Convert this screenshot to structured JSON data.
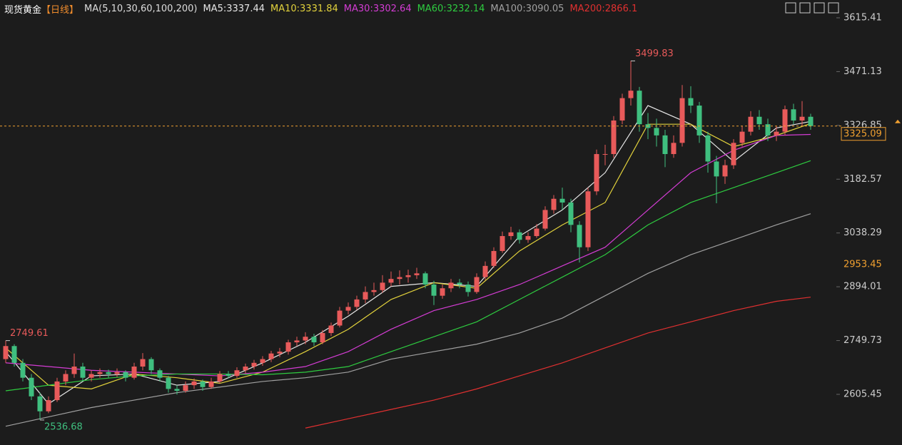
{
  "chart_data": {
    "type": "candlestick",
    "title": "现货黄金",
    "period": "【日线】",
    "indicator": "MA(5,10,30,60,100,200)",
    "up_color": "#e85a5a",
    "down_color": "#3fbf7f",
    "candles": [
      [
        2700,
        2749.61,
        2690,
        2735
      ],
      [
        2735,
        2740,
        2680,
        2690
      ],
      [
        2690,
        2700,
        2640,
        2650
      ],
      [
        2650,
        2660,
        2590,
        2600
      ],
      [
        2600,
        2610,
        2536.68,
        2560
      ],
      [
        2560,
        2600,
        2555,
        2590
      ],
      [
        2590,
        2650,
        2585,
        2640
      ],
      [
        2640,
        2670,
        2630,
        2660
      ],
      [
        2660,
        2715,
        2650,
        2680
      ],
      [
        2680,
        2690,
        2640,
        2650
      ],
      [
        2650,
        2670,
        2640,
        2660
      ],
      [
        2660,
        2675,
        2650,
        2665
      ],
      [
        2665,
        2672,
        2650,
        2660
      ],
      [
        2660,
        2675,
        2652,
        2665
      ],
      [
        2665,
        2670,
        2640,
        2650
      ],
      [
        2650,
        2690,
        2645,
        2680
      ],
      [
        2680,
        2716,
        2670,
        2700
      ],
      [
        2700,
        2705,
        2660,
        2670
      ],
      [
        2670,
        2675,
        2640,
        2650
      ],
      [
        2650,
        2655,
        2610,
        2620
      ],
      [
        2620,
        2630,
        2605,
        2615
      ],
      [
        2615,
        2640,
        2610,
        2630
      ],
      [
        2630,
        2648,
        2620,
        2640
      ],
      [
        2640,
        2645,
        2615,
        2625
      ],
      [
        2625,
        2650,
        2620,
        2640
      ],
      [
        2640,
        2668,
        2635,
        2660
      ],
      [
        2660,
        2668,
        2648,
        2655
      ],
      [
        2655,
        2678,
        2650,
        2670
      ],
      [
        2670,
        2688,
        2662,
        2680
      ],
      [
        2680,
        2698,
        2672,
        2690
      ],
      [
        2690,
        2708,
        2682,
        2700
      ],
      [
        2700,
        2722,
        2692,
        2715
      ],
      [
        2715,
        2730,
        2705,
        2720
      ],
      [
        2720,
        2752,
        2712,
        2745
      ],
      [
        2745,
        2760,
        2735,
        2750
      ],
      [
        2750,
        2772,
        2740,
        2760
      ],
      [
        2760,
        2768,
        2735,
        2745
      ],
      [
        2745,
        2778,
        2740,
        2770
      ],
      [
        2770,
        2798,
        2762,
        2790
      ],
      [
        2790,
        2840,
        2785,
        2830
      ],
      [
        2830,
        2852,
        2820,
        2840
      ],
      [
        2840,
        2870,
        2832,
        2860
      ],
      [
        2860,
        2895,
        2850,
        2880
      ],
      [
        2880,
        2905,
        2870,
        2885
      ],
      [
        2885,
        2925,
        2878,
        2905
      ],
      [
        2905,
        2935,
        2895,
        2915
      ],
      [
        2915,
        2938,
        2900,
        2920
      ],
      [
        2920,
        2940,
        2905,
        2925
      ],
      [
        2925,
        2945,
        2915,
        2930
      ],
      [
        2930,
        2935,
        2890,
        2900
      ],
      [
        2900,
        2910,
        2845,
        2870
      ],
      [
        2870,
        2900,
        2862,
        2890
      ],
      [
        2890,
        2915,
        2880,
        2905
      ],
      [
        2905,
        2915,
        2890,
        2900
      ],
      [
        2900,
        2908,
        2868,
        2880
      ],
      [
        2880,
        2930,
        2875,
        2920
      ],
      [
        2920,
        2962,
        2912,
        2950
      ],
      [
        2950,
        3000,
        2945,
        2990
      ],
      [
        2990,
        3042,
        2985,
        3030
      ],
      [
        3030,
        3055,
        3020,
        3040
      ],
      [
        3040,
        3048,
        3010,
        3020
      ],
      [
        3020,
        3040,
        3012,
        3030
      ],
      [
        3030,
        3062,
        3025,
        3050
      ],
      [
        3050,
        3110,
        3045,
        3100
      ],
      [
        3100,
        3140,
        3090,
        3130
      ],
      [
        3130,
        3160,
        3100,
        3120
      ],
      [
        3120,
        3130,
        3040,
        3060
      ],
      [
        3060,
        3070,
        2959,
        3000
      ],
      [
        3000,
        3160,
        2990,
        3150
      ],
      [
        3150,
        3262,
        3140,
        3250
      ],
      [
        3250,
        3275,
        3220,
        3250
      ],
      [
        3250,
        3352,
        3240,
        3340
      ],
      [
        3340,
        3412,
        3330,
        3400
      ],
      [
        3400,
        3499.83,
        3380,
        3420
      ],
      [
        3420,
        3430,
        3310,
        3330
      ],
      [
        3330,
        3360,
        3290,
        3320
      ],
      [
        3320,
        3345,
        3270,
        3300
      ],
      [
        3300,
        3315,
        3215,
        3250
      ],
      [
        3250,
        3300,
        3240,
        3280
      ],
      [
        3280,
        3435,
        3270,
        3400
      ],
      [
        3400,
        3432,
        3360,
        3380
      ],
      [
        3380,
        3390,
        3280,
        3300
      ],
      [
        3300,
        3310,
        3200,
        3230
      ],
      [
        3230,
        3245,
        3118,
        3190
      ],
      [
        3190,
        3235,
        3170,
        3220
      ],
      [
        3220,
        3290,
        3210,
        3280
      ],
      [
        3280,
        3325,
        3270,
        3310
      ],
      [
        3310,
        3365,
        3300,
        3350
      ],
      [
        3350,
        3368,
        3315,
        3330
      ],
      [
        3330,
        3345,
        3285,
        3300
      ],
      [
        3300,
        3325,
        3285,
        3310
      ],
      [
        3310,
        3380,
        3300,
        3370
      ],
      [
        3370,
        3385,
        3330,
        3340
      ],
      [
        3340,
        3392,
        3325,
        3350
      ],
      [
        3350,
        3358,
        3315,
        3325.09
      ]
    ],
    "ma_x": [
      0,
      5,
      10,
      15,
      20,
      25,
      30,
      35,
      40,
      45,
      50,
      55,
      60,
      65,
      70,
      75,
      80,
      85,
      90,
      94
    ],
    "series": [
      {
        "name": "MA5",
        "label": "MA5:3337.44",
        "color": "#e6e6e6",
        "values": [
          2720,
          2580,
          2655,
          2660,
          2630,
          2640,
          2690,
          2745,
          2815,
          2895,
          2905,
          2895,
          3030,
          3100,
          3200,
          3380,
          3330,
          3230,
          3320,
          3337.44
        ]
      },
      {
        "name": "MA10",
        "label": "MA10:3331.84",
        "color": "#e2d23c",
        "values": [
          2730,
          2630,
          2620,
          2660,
          2650,
          2635,
          2665,
          2720,
          2780,
          2860,
          2905,
          2890,
          2990,
          3060,
          3120,
          3330,
          3330,
          3270,
          3300,
          3331.84
        ]
      },
      {
        "name": "MA30",
        "label": "MA30:3302.64",
        "color": "#d43cd4",
        "values": [
          2690,
          2680,
          2670,
          2665,
          2660,
          2655,
          2665,
          2680,
          2720,
          2780,
          2830,
          2860,
          2900,
          2950,
          3000,
          3100,
          3200,
          3260,
          3300,
          3302.64
        ]
      },
      {
        "name": "MA60",
        "label": "MA60:3232.14",
        "color": "#2ecc40",
        "values": [
          2615,
          2630,
          2645,
          2655,
          2660,
          2660,
          2658,
          2665,
          2680,
          2720,
          2760,
          2800,
          2860,
          2920,
          2980,
          3060,
          3120,
          3160,
          3200,
          3232.14
        ]
      },
      {
        "name": "MA100",
        "label": "MA100:3090.05",
        "color": "#a0a0a0",
        "values": [
          2520,
          2545,
          2570,
          2590,
          2610,
          2625,
          2640,
          2650,
          2665,
          2700,
          2720,
          2740,
          2770,
          2810,
          2870,
          2930,
          2980,
          3020,
          3060,
          3090.05
        ]
      },
      {
        "name": "MA200",
        "label": "MA200:2866.1",
        "color": "#e03030",
        "values": [
          null,
          null,
          null,
          null,
          null,
          null,
          null,
          2515,
          2540,
          2565,
          2590,
          2620,
          2655,
          2690,
          2730,
          2770,
          2800,
          2830,
          2855,
          2866.1
        ]
      }
    ],
    "ylim": [
      2469.6,
      3663.2
    ],
    "yticks": [
      3615.41,
      3471.13,
      3326.85,
      3182.57,
      3038.29,
      2894.01,
      2749.73,
      2605.45
    ],
    "last_price": 3325.09,
    "marker_price": 2953.45
  }
}
